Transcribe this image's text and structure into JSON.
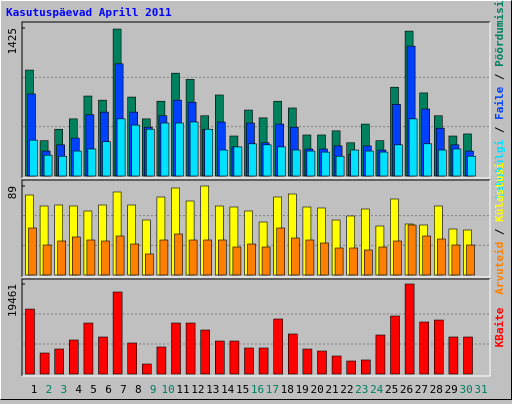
{
  "chart_data": [
    {
      "type": "bar",
      "title": "Kasutuspäevad Aprill 2011",
      "ylim": [
        0,
        1425
      ],
      "yticks": [
        1425
      ],
      "legend_separator": " / ",
      "series": [
        {
          "name": "Pöördumisi",
          "color": "#00805c",
          "values": [
            1020,
            340,
            450,
            550,
            770,
            730,
            1415,
            760,
            550,
            720,
            990,
            930,
            580,
            780,
            385,
            635,
            560,
            720,
            655,
            395,
            395,
            435,
            320,
            500,
            340,
            855,
            1395,
            800,
            580,
            385,
            405
          ]
        },
        {
          "name": "Faile",
          "color": "#0040ff",
          "values": [
            790,
            240,
            300,
            365,
            590,
            615,
            1080,
            615,
            470,
            580,
            730,
            710,
            450,
            520,
            280,
            510,
            320,
            500,
            470,
            260,
            260,
            290,
            210,
            290,
            250,
            690,
            1250,
            645,
            460,
            300,
            240
          ]
        },
        {
          "name": "Lehekülgi",
          "color": "#00e0ff",
          "values": [
            345,
            200,
            190,
            240,
            260,
            330,
            550,
            490,
            450,
            510,
            510,
            520,
            450,
            250,
            280,
            310,
            300,
            280,
            250,
            240,
            230,
            190,
            250,
            240,
            230,
            300,
            550,
            310,
            250,
            260,
            190
          ]
        }
      ]
    },
    {
      "type": "bar",
      "ylim": [
        0,
        89
      ],
      "yticks": [
        89
      ],
      "legend_separator": " / ",
      "series": [
        {
          "name": "Külastusi",
          "color": "#ffff00",
          "values": [
            80,
            69,
            70,
            69,
            64,
            70,
            83,
            70,
            55,
            78,
            87,
            74,
            89,
            69,
            68,
            64,
            53,
            78,
            81,
            68,
            67,
            55,
            59,
            66,
            49,
            76,
            51,
            50,
            69,
            46,
            45
          ]
        },
        {
          "name": "Arvuteid",
          "color": "#ff8000",
          "values": [
            47,
            30,
            34,
            38,
            35,
            34,
            39,
            31,
            21,
            35,
            41,
            35,
            35,
            35,
            28,
            31,
            28,
            47,
            37,
            35,
            32,
            27,
            27,
            25,
            28,
            34,
            50,
            39,
            36,
            30,
            30
          ]
        }
      ]
    },
    {
      "type": "bar",
      "ylim": [
        0,
        19461
      ],
      "yticks": [
        19461
      ],
      "categories": [
        "1",
        "2",
        "3",
        "4",
        "5",
        "6",
        "7",
        "8",
        "9",
        "10",
        "11",
        "12",
        "13",
        "14",
        "15",
        "16",
        "17",
        "18",
        "19",
        "20",
        "21",
        "22",
        "23",
        "24",
        "25",
        "26",
        "27",
        "28",
        "29",
        "30",
        "31"
      ],
      "category_colors": [
        "#000",
        "#00805c",
        "#00805c",
        "#000",
        "#000",
        "#000",
        "#000",
        "#000",
        "#00805c",
        "#00805c",
        "#000",
        "#000",
        "#000",
        "#000",
        "#000",
        "#00805c",
        "#00805c",
        "#000",
        "#000",
        "#000",
        "#000",
        "#000",
        "#00805c",
        "#00805c",
        "#000",
        "#000",
        "#000",
        "#000",
        "#000",
        "#00805c",
        "#00805c"
      ],
      "series": [
        {
          "name": "KBaite",
          "color": "#ff0000",
          "values": [
            14040,
            4540,
            5400,
            7350,
            11020,
            8000,
            17730,
            6700,
            2160,
            5840,
            11020,
            11020,
            9510,
            7130,
            7130,
            5620,
            5620,
            11890,
            8650,
            5400,
            4970,
            3890,
            2810,
            3030,
            8430,
            12540,
            19461,
            11240,
            11670,
            8000,
            8000
          ]
        }
      ]
    }
  ]
}
